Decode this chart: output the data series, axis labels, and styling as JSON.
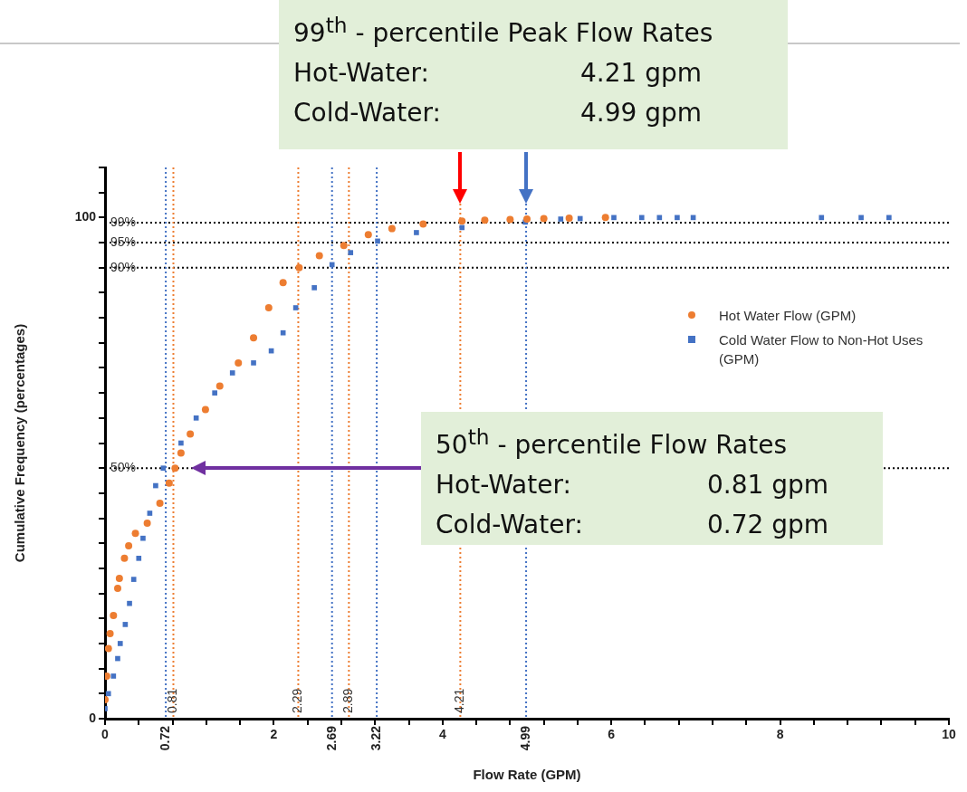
{
  "chart_data": {
    "type": "scatter",
    "xlabel": "Flow Rate (GPM)",
    "ylabel": "Cumulative Frequency (percentages)",
    "xlim": [
      0,
      10
    ],
    "ylim": [
      0,
      110
    ],
    "xticks": [
      0,
      {
        "value": 0.4,
        "label": null
      },
      {
        "value": 0.8,
        "label": null
      },
      {
        "value": 1.2,
        "label": null
      },
      {
        "value": 1.6,
        "label": null
      },
      2,
      {
        "value": 2.4,
        "label": null
      },
      {
        "value": 2.8,
        "label": null
      },
      {
        "value": 3.2,
        "label": null
      },
      {
        "value": 3.6,
        "label": null
      },
      4,
      {
        "value": 4.4,
        "label": null
      },
      {
        "value": 4.8,
        "label": null
      },
      {
        "value": 5.2,
        "label": null
      },
      {
        "value": 5.6,
        "label": null
      },
      6,
      {
        "value": 6.4,
        "label": null
      },
      {
        "value": 6.8,
        "label": null
      },
      {
        "value": 7.2,
        "label": null
      },
      {
        "value": 7.6,
        "label": null
      },
      8,
      {
        "value": 8.4,
        "label": null
      },
      {
        "value": 8.8,
        "label": null
      },
      {
        "value": 9.2,
        "label": null
      },
      {
        "value": 9.6,
        "label": null
      },
      10
    ],
    "yticks": [
      0,
      {
        "value": 5,
        "label": null
      },
      {
        "value": 10,
        "label": null
      },
      {
        "value": 15,
        "label": null
      },
      {
        "value": 20,
        "label": null
      },
      {
        "value": 25,
        "label": null
      },
      {
        "value": 30,
        "label": null
      },
      {
        "value": 35,
        "label": null
      },
      {
        "value": 40,
        "label": null
      },
      {
        "value": 45,
        "label": null
      },
      {
        "value": 50,
        "label": null
      },
      {
        "value": 55,
        "label": null
      },
      {
        "value": 60,
        "label": null
      },
      {
        "value": 65,
        "label": null
      },
      {
        "value": 70,
        "label": null
      },
      {
        "value": 75,
        "label": null
      },
      {
        "value": 80,
        "label": null
      },
      {
        "value": 85,
        "label": null
      },
      {
        "value": 90,
        "label": null
      },
      {
        "value": 95,
        "label": null
      },
      100,
      {
        "value": 105,
        "label": null
      },
      {
        "value": 110,
        "label": null
      }
    ],
    "legend": "right",
    "series": [
      {
        "name": "Hot Water Flow (GPM)",
        "color": "#ed7d31",
        "marker": "circle",
        "x": [
          0,
          0.02,
          0.04,
          0.06,
          0.1,
          0.15,
          0.17,
          0.23,
          0.28,
          0.36,
          0.5,
          0.65,
          0.76,
          0.83,
          0.9,
          1.01,
          1.19,
          1.36,
          1.58,
          1.76,
          1.94,
          2.11,
          2.3,
          2.54,
          2.83,
          3.12,
          3.4,
          3.77,
          4.23,
          4.5,
          4.8,
          5.0,
          5.2,
          5.5,
          5.93
        ],
        "values": [
          3.8,
          8.5,
          14,
          17,
          20.6,
          26,
          28,
          32,
          34.5,
          37,
          39,
          43,
          47,
          50,
          53,
          56.8,
          61.7,
          66.4,
          71,
          76,
          82,
          87,
          90,
          92.4,
          94.4,
          96.6,
          97.8,
          98.7,
          99.3,
          99.5,
          99.6,
          99.7,
          99.8,
          99.9,
          100
        ]
      },
      {
        "name": "Cold Water Flow to Non-Hot Uses (GPM)",
        "color": "#4472c4",
        "marker": "square",
        "x": [
          0,
          0.04,
          0.1,
          0.15,
          0.18,
          0.24,
          0.29,
          0.34,
          0.4,
          0.45,
          0.53,
          0.6,
          0.69,
          0.9,
          1.08,
          1.3,
          1.51,
          1.76,
          1.97,
          2.11,
          2.26,
          2.48,
          2.69,
          2.91,
          3.23,
          3.69,
          4.23,
          4.98,
          5.4,
          5.63,
          6.03,
          6.36,
          6.57,
          6.78,
          6.97,
          8.49,
          8.96,
          9.29
        ],
        "values": [
          2,
          5,
          8.5,
          12,
          15,
          18.8,
          23,
          27.8,
          32,
          36,
          41,
          46.5,
          50,
          55,
          60,
          65,
          69,
          71,
          73.4,
          77,
          82,
          86,
          90.6,
          93,
          95.3,
          97,
          98,
          99.1,
          99.7,
          99.8,
          100,
          100,
          100,
          100,
          100,
          100,
          100,
          100
        ]
      }
    ],
    "ref_lines": [
      {
        "axis": "y",
        "value": 99,
        "label": "99%",
        "color": "#000000",
        "line_style": "dotted"
      },
      {
        "axis": "y",
        "value": 95,
        "label": "95%",
        "color": "#000000",
        "line_style": "dotted"
      },
      {
        "axis": "y",
        "value": 90,
        "label": "90%",
        "color": "#000000",
        "line_style": "dotted"
      },
      {
        "axis": "x",
        "value": 0.72,
        "label": "0.72",
        "color": "#4472c4",
        "line_style": "dotted"
      },
      {
        "axis": "x",
        "value": 0.81,
        "label": "0.81",
        "color": "#ed7d31",
        "line_style": "dotted"
      },
      {
        "axis": "x",
        "value": 2.29,
        "label": "2.29",
        "color": "#ed7d31",
        "line_style": "dotted"
      },
      {
        "axis": "x",
        "value": 2.69,
        "label": "2.69",
        "color": "#4472c4",
        "line_style": "dotted"
      },
      {
        "axis": "x",
        "value": 2.89,
        "label": "2.89",
        "color": "#ed7d31",
        "line_style": "dotted"
      },
      {
        "axis": "x",
        "value": 3.22,
        "label": "3.22",
        "color": "#4472c4",
        "line_style": "dotted"
      },
      {
        "axis": "x",
        "value": 4.21,
        "label": "4.21",
        "color": "#ed7d31",
        "line_style": "dotted"
      },
      {
        "axis": "x",
        "value": 4.99,
        "label": "4.99",
        "color": "#4472c4",
        "line_style": "dotted"
      },
      {
        "axis": "y",
        "value": 50,
        "label": "50%",
        "color": "#000000",
        "line_style": "dotted"
      }
    ],
    "annotations": [
      "99$^{th}$ - percentile Peak Flow Rates",
      "Hot-Water:\t4.21 gpm",
      "Cold-Water:\t4.99 gpm",
      "50$^{th}$ - percentile Flow Rates",
      "Hot-Water:\t0.81 gpm",
      "Cold-Water:\t0.72 gpm"
    ]
  }
}
